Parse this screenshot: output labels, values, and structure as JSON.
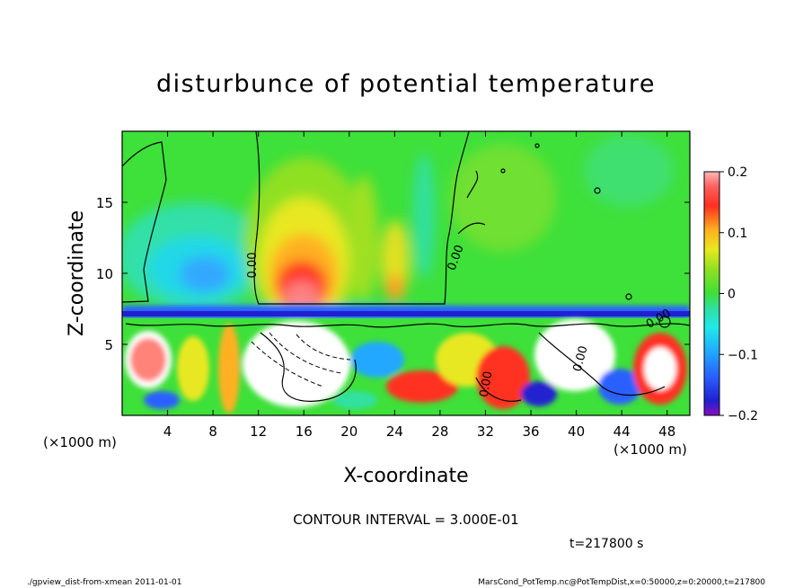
{
  "chart_data": {
    "type": "heatmap",
    "title": "disturbunce of potential temperature",
    "xlabel": "X-coordinate",
    "ylabel": "Z-coordinate",
    "x_unit_label": "(×1000 m)",
    "y_unit_label": "(×1000 m)",
    "xlim": [
      0,
      50
    ],
    "ylim": [
      0,
      20
    ],
    "x_ticks": [
      4,
      8,
      12,
      16,
      20,
      24,
      28,
      32,
      36,
      40,
      44,
      48
    ],
    "y_ticks": [
      5,
      10,
      15
    ],
    "colorbar": {
      "range": [
        -0.2,
        0.2
      ],
      "tick_values": [
        0.2,
        0.1,
        0,
        -0.1,
        -0.2
      ],
      "tick_labels": [
        "0.2",
        "0.1",
        "0",
        "−0.1",
        "−0.2"
      ]
    },
    "contour_labels": [
      "0.00",
      "0.00",
      "0.00",
      "0.00",
      "0.00"
    ],
    "contour_interval_text": "CONTOUR INTERVAL = 3.000E-01",
    "time_text": "t=217800 s",
    "footer_left": "./gpview_dist-from-xmean  2011-01-01",
    "footer_right": "MarsCond_PotTemp.nc@PotTempDist,x=0:50000,z=0:20000,t=217800",
    "colors": {
      "background_field": "#3ee03a",
      "positive_peak": "#ff9a9a",
      "negative_peak": "#8a10c0"
    }
  }
}
